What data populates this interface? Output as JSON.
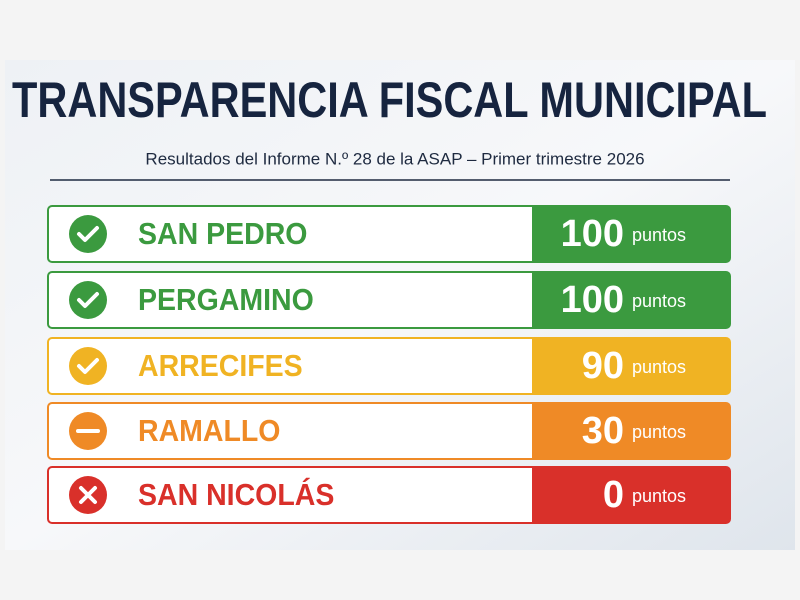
{
  "header": {
    "title": "TRANSPARENCIA FISCAL MUNICIPAL",
    "subtitle": "Resultados del Informe N.º 28 de la ASAP – Primer trimestre 2026"
  },
  "rows": [
    {
      "name": "SAN PEDRO",
      "score": 100,
      "unit": "puntos",
      "icon": "check",
      "color": "#3b9a3f"
    },
    {
      "name": "PERGAMINO",
      "score": 100,
      "unit": "puntos",
      "icon": "check",
      "color": "#3b9a3f"
    },
    {
      "name": "ARRECIFES",
      "score": 90,
      "unit": "puntos",
      "icon": "check",
      "color": "#f0b323"
    },
    {
      "name": "RAMALLO",
      "score": 30,
      "unit": "puntos",
      "icon": "minus",
      "color": "#ef8a26"
    },
    {
      "name": "SAN NICOLÁS",
      "score": 0,
      "unit": "puntos",
      "icon": "cross",
      "color": "#d9302a"
    }
  ]
}
